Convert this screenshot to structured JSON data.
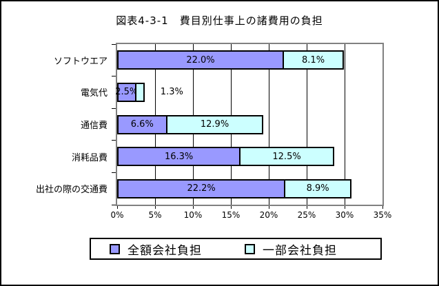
{
  "title": "図表4-3-1　費目別仕事上の諸費用の負担",
  "chart_data": {
    "type": "bar",
    "orientation": "horizontal",
    "stacked": true,
    "title": "図表4-3-1　費目別仕事上の諸費用の負担",
    "categories": [
      "ソフトウエア",
      "電気代",
      "通信費",
      "消耗品費",
      "出社の際の交通費"
    ],
    "series": [
      {
        "name": "全額会社負担",
        "color": "#9999FF",
        "values": [
          22.0,
          2.5,
          6.6,
          16.3,
          22.2
        ],
        "labels": [
          "22.0%",
          "2.5%",
          "6.6%",
          "16.3%",
          "22.2%"
        ]
      },
      {
        "name": "一部会社負担",
        "color": "#CCFFFF",
        "values": [
          8.1,
          1.3,
          12.9,
          12.5,
          8.9
        ],
        "labels": [
          "8.1%",
          "1.3%",
          "12.9%",
          "12.5%",
          "8.9%"
        ]
      }
    ],
    "xlim": [
      0,
      35
    ],
    "x_ticks": [
      0,
      5,
      10,
      15,
      20,
      25,
      30,
      35
    ],
    "x_tick_labels": [
      "0%",
      "5%",
      "10%",
      "15%",
      "20%",
      "25%",
      "30%",
      "35%"
    ],
    "grid": true,
    "legend_position": "bottom",
    "colors": {
      "grid": "#000000",
      "plot_border": "#808080",
      "bar_border": "#000000",
      "background": "#FFFFFF"
    }
  }
}
